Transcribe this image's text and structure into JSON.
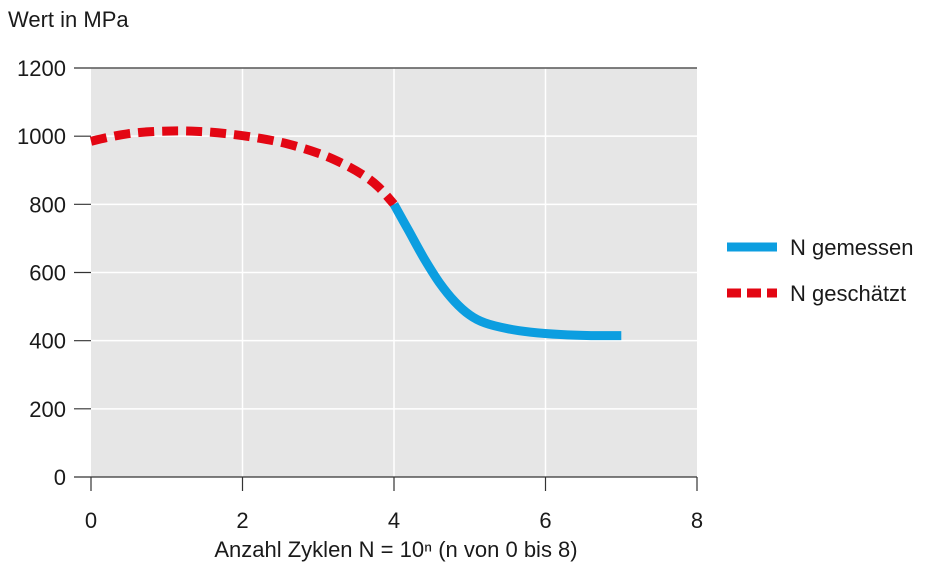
{
  "chart_data": {
    "type": "line",
    "ylabel": "Wert in MPa",
    "xlabel": "Anzahl Zyklen N = 10ⁿ  (n von 0 bis 8)",
    "xlim": [
      0,
      8
    ],
    "ylim": [
      0,
      1200
    ],
    "x_ticks": [
      0,
      2,
      4,
      6,
      8
    ],
    "y_ticks": [
      0,
      200,
      400,
      600,
      800,
      1000,
      1200
    ],
    "grid": true,
    "legend_position": "right",
    "series": [
      {
        "name": "N gemessen",
        "color": "#0c9ee0",
        "style": "solid",
        "points": [
          [
            4.0,
            800
          ],
          [
            4.2,
            720
          ],
          [
            4.4,
            640
          ],
          [
            4.6,
            570
          ],
          [
            4.8,
            515
          ],
          [
            5.0,
            475
          ],
          [
            5.2,
            452
          ],
          [
            5.5,
            435
          ],
          [
            5.8,
            425
          ],
          [
            6.2,
            418
          ],
          [
            6.6,
            415
          ],
          [
            7.0,
            415
          ]
        ]
      },
      {
        "name": "N geschätzt",
        "color": "#e30613",
        "style": "dashed",
        "points": [
          [
            0.0,
            985
          ],
          [
            0.3,
            1000
          ],
          [
            0.6,
            1010
          ],
          [
            1.0,
            1015
          ],
          [
            1.4,
            1014
          ],
          [
            1.8,
            1007
          ],
          [
            2.2,
            995
          ],
          [
            2.6,
            977
          ],
          [
            3.0,
            950
          ],
          [
            3.3,
            922
          ],
          [
            3.6,
            885
          ],
          [
            3.8,
            850
          ],
          [
            4.0,
            800
          ]
        ]
      }
    ]
  }
}
